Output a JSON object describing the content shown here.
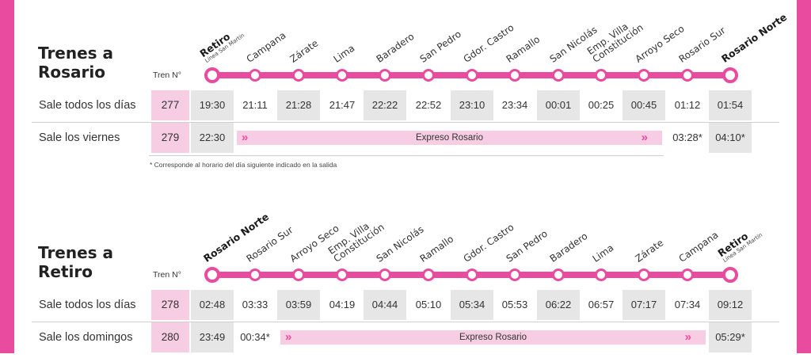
{
  "header_label": "Tren N°",
  "footnote": "* Corresponde al horario del día siguiente indicado en la salida",
  "colors": {
    "accent": "#e94b9f",
    "light_pink": "#f6cde2",
    "shade": "#e6e6e7"
  },
  "sections": [
    {
      "title": "Trenes a Rosario",
      "stations": [
        {
          "name": "Retiro",
          "sub": "Línea San Martín",
          "bold": true
        },
        {
          "name": "Campana"
        },
        {
          "name": "Zárate"
        },
        {
          "name": "Lima"
        },
        {
          "name": "Baradero"
        },
        {
          "name": "San Pedro"
        },
        {
          "name": "Gdor. Castro"
        },
        {
          "name": "Ramallo"
        },
        {
          "name": "San Nicolás"
        },
        {
          "name": "Emp. Villa",
          "name2": "Constitución"
        },
        {
          "name": "Arroyo Seco"
        },
        {
          "name": "Rosario Sur"
        },
        {
          "name": "Rosario Norte",
          "bold": true
        }
      ],
      "rows": [
        {
          "label": "Sale todos los días",
          "train": "277",
          "times": [
            "19:30",
            "21:11",
            "21:28",
            "21:47",
            "22:22",
            "22:52",
            "23:10",
            "23:34",
            "00:01",
            "00:25",
            "00:45",
            "01:12",
            "01:54"
          ]
        },
        {
          "label": "Sale los viernes",
          "train": "279",
          "times": [
            "22:30",
            "",
            "",
            "",
            "",
            "",
            "",
            "",
            "",
            "",
            "",
            "03:28*",
            "04:10*"
          ],
          "express": {
            "label": "Expreso Rosario",
            "from": 1,
            "to": 10
          }
        }
      ]
    },
    {
      "title": "Trenes a Retiro",
      "stations": [
        {
          "name": "Rosario Norte",
          "bold": true
        },
        {
          "name": "Rosario Sur"
        },
        {
          "name": "Arroyo Seco"
        },
        {
          "name": "Emp. Villa",
          "name2": "Constitución"
        },
        {
          "name": "San Nicolás"
        },
        {
          "name": "Ramallo"
        },
        {
          "name": "Gdor. Castro"
        },
        {
          "name": "San Pedro"
        },
        {
          "name": "Baradero"
        },
        {
          "name": "Lima"
        },
        {
          "name": "Zárate"
        },
        {
          "name": "Campana"
        },
        {
          "name": "Retiro",
          "sub": "Línea San Martín",
          "bold": true
        }
      ],
      "rows": [
        {
          "label": "Sale todos los días",
          "train": "278",
          "times": [
            "02:48",
            "03:33",
            "03:59",
            "04:19",
            "04:44",
            "05:10",
            "05:34",
            "05:53",
            "06:22",
            "06:57",
            "07:17",
            "07:34",
            "09:12"
          ]
        },
        {
          "label": "Sale los domingos",
          "train": "280",
          "times": [
            "23:49",
            "00:34*",
            "",
            "",
            "",
            "",
            "",
            "",
            "",
            "",
            "",
            "",
            "05:29*"
          ],
          "express": {
            "label": "Expreso Rosario",
            "from": 2,
            "to": 11
          }
        }
      ]
    }
  ]
}
